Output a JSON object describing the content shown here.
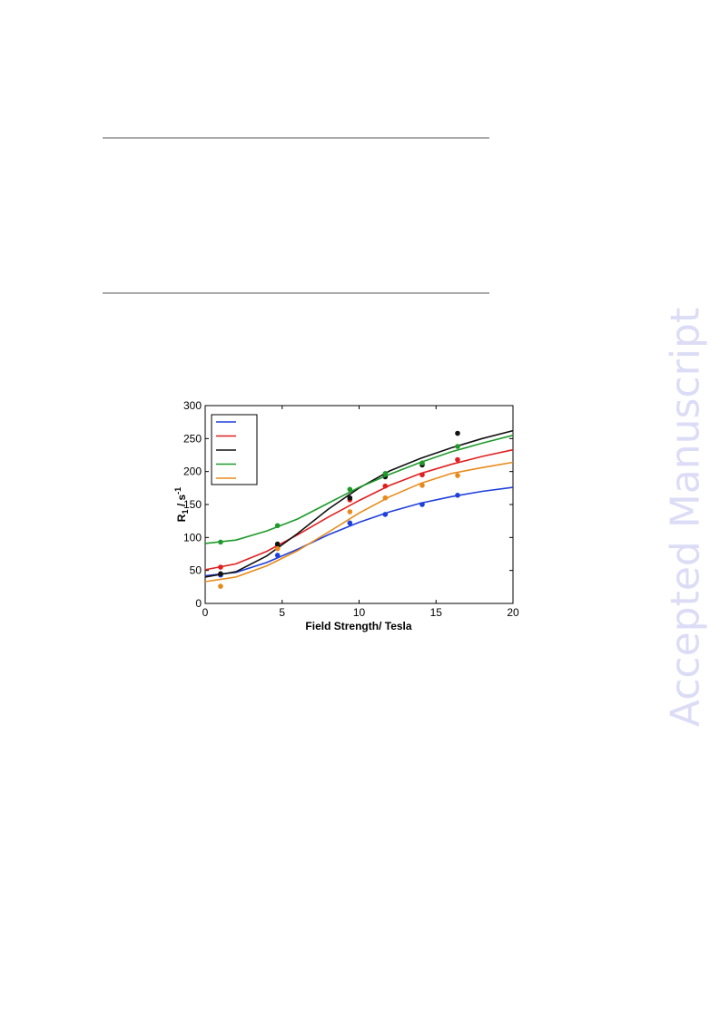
{
  "watermark": "Accepted Manuscript",
  "chart_data": {
    "type": "line",
    "xlabel": "Field Strength/ Tesla",
    "ylabel": {
      "symbol": "R",
      "subscript": "1",
      "unit": " / s",
      "superscript": "-1"
    },
    "x": [
      1,
      4.7,
      9.4,
      11.7,
      14.1,
      16.4
    ],
    "fit_x": [
      0,
      2,
      4,
      6,
      8,
      10,
      12,
      14,
      16,
      18,
      20
    ],
    "series": [
      {
        "color": "#1f3fdc",
        "values": [
          43,
          73,
          122,
          135,
          150,
          164
        ],
        "fit_values": [
          42,
          47,
          62,
          82,
          104,
          123,
          139,
          152,
          162,
          170,
          176
        ]
      },
      {
        "color": "#e02020",
        "values": [
          55,
          87,
          157,
          178,
          195,
          218
        ],
        "fit_values": [
          51,
          60,
          79,
          104,
          131,
          156,
          179,
          197,
          211,
          223,
          233
        ]
      },
      {
        "color": "#111111",
        "values": [
          45,
          90,
          160,
          192,
          210,
          258
        ],
        "fit_values": [
          40,
          48,
          72,
          106,
          143,
          175,
          201,
          220,
          236,
          250,
          262
        ]
      },
      {
        "color": "#1e9a2a",
        "values": [
          93,
          118,
          173,
          197,
          213,
          238
        ],
        "fit_values": [
          91,
          96,
          110,
          128,
          152,
          176,
          196,
          214,
          230,
          243,
          255
        ]
      },
      {
        "color": "#e88a1a",
        "values": [
          26,
          83,
          139,
          160,
          179,
          194
        ],
        "fit_values": [
          33,
          40,
          57,
          80,
          108,
          137,
          162,
          182,
          197,
          206,
          214
        ]
      }
    ],
    "xlim": [
      0,
      20
    ],
    "ylim": [
      0,
      300
    ],
    "xticks": [
      0,
      5,
      10,
      15,
      20
    ],
    "yticks": [
      0,
      50,
      100,
      150,
      200,
      250,
      300
    ]
  }
}
